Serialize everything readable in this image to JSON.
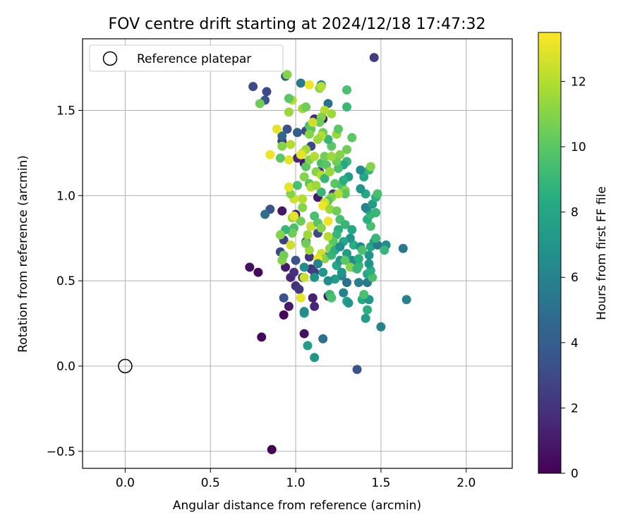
{
  "chart_data": {
    "type": "scatter",
    "title": "FOV centre drift starting at 2024/12/18 17:47:32",
    "xlabel": "Angular distance from reference (arcmin)",
    "ylabel": "Rotation from reference (arcmin)",
    "xlim": [
      -0.25,
      2.27
    ],
    "ylim": [
      -0.6,
      1.92
    ],
    "xticks": [
      0.0,
      0.5,
      1.0,
      1.5,
      2.0
    ],
    "xtick_labels": [
      "0.0",
      "0.5",
      "1.0",
      "1.5",
      "2.0"
    ],
    "yticks": [
      -0.5,
      0.0,
      0.5,
      1.0,
      1.5
    ],
    "ytick_labels": [
      "−0.5",
      "0.0",
      "0.5",
      "1.0",
      "1.5"
    ],
    "grid": true,
    "legend": {
      "placement": "top-left",
      "entries": [
        "Reference platepar"
      ]
    },
    "reference_point": {
      "name": "Reference platepar",
      "x": 0.0,
      "y": 0.0
    },
    "colorbar": {
      "label": "Hours from first FF file",
      "colormap": "viridis",
      "range": [
        0,
        13.5
      ],
      "ticks": [
        0,
        2,
        4,
        6,
        8,
        10,
        12
      ],
      "tick_labels": [
        "0",
        "2",
        "4",
        "6",
        "8",
        "10",
        "12"
      ]
    },
    "series": [
      {
        "points": [
          [
            0.86,
            -0.49,
            0.1
          ],
          [
            0.8,
            0.17,
            0.2
          ],
          [
            0.93,
            0.3,
            0.3
          ],
          [
            1.05,
            0.19,
            0.5
          ],
          [
            0.73,
            0.58,
            0.6
          ],
          [
            0.78,
            0.55,
            0.4
          ],
          [
            0.96,
            0.35,
            1.0
          ],
          [
            1.11,
            0.35,
            1.5
          ],
          [
            1.1,
            0.4,
            1.3
          ],
          [
            1.0,
            0.47,
            1.8
          ],
          [
            1.02,
            0.45,
            2.2
          ],
          [
            0.93,
            0.4,
            3.5
          ],
          [
            1.19,
            0.41,
            0.8
          ],
          [
            0.94,
            0.58,
            1.0
          ],
          [
            0.92,
            0.91,
            0.8
          ],
          [
            0.97,
            0.52,
            1.5
          ],
          [
            1.09,
            0.57,
            2.0
          ],
          [
            1.04,
            0.52,
            2.5
          ],
          [
            0.91,
            0.67,
            3.0
          ],
          [
            1.0,
            0.62,
            3.5
          ],
          [
            1.06,
            0.73,
            4.0
          ],
          [
            1.13,
            0.78,
            3.0
          ],
          [
            1.09,
            0.82,
            1.0
          ],
          [
            1.0,
            0.89,
            1.5
          ],
          [
            0.93,
            0.74,
            2.5
          ],
          [
            0.85,
            0.92,
            3.5
          ],
          [
            0.82,
            0.89,
            5.0
          ],
          [
            1.08,
            0.64,
            2.0
          ],
          [
            1.11,
            0.55,
            2.5
          ],
          [
            0.99,
            0.55,
            1.8
          ],
          [
            1.16,
            0.65,
            2.2
          ],
          [
            1.13,
            0.99,
            1.0
          ],
          [
            1.22,
            1.01,
            2.5
          ],
          [
            1.05,
            1.19,
            1.0
          ],
          [
            1.01,
            1.22,
            1.5
          ],
          [
            1.14,
            1.14,
            2.0
          ],
          [
            1.06,
            1.38,
            3.0
          ],
          [
            1.01,
            1.37,
            4.0
          ],
          [
            0.92,
            1.32,
            2.5
          ],
          [
            0.95,
            1.39,
            3.5
          ],
          [
            1.09,
            1.29,
            3.0
          ],
          [
            1.11,
            1.45,
            2.0
          ],
          [
            1.16,
            1.45,
            1.0
          ],
          [
            1.19,
            1.54,
            5.0
          ],
          [
            1.03,
            1.66,
            5.5
          ],
          [
            1.15,
            1.65,
            5.8
          ],
          [
            0.92,
            1.35,
            4.5
          ],
          [
            0.75,
            1.64,
            3.0
          ],
          [
            0.82,
            1.56,
            3.5
          ],
          [
            0.83,
            1.61,
            3.0
          ],
          [
            0.94,
            1.7,
            4.0
          ],
          [
            1.46,
            1.81,
            2.5
          ],
          [
            1.36,
            -0.02,
            3.5
          ],
          [
            1.5,
            0.23,
            6.0
          ],
          [
            1.16,
            0.16,
            5.0
          ],
          [
            1.07,
            0.12,
            7.5
          ],
          [
            1.11,
            0.05,
            7.0
          ],
          [
            1.05,
            0.31,
            7.5
          ],
          [
            1.05,
            0.32,
            6.5
          ],
          [
            1.2,
            0.42,
            9.0
          ],
          [
            1.21,
            0.4,
            9.5
          ],
          [
            1.3,
            0.38,
            8.0
          ],
          [
            1.31,
            0.37,
            7.0
          ],
          [
            1.28,
            0.43,
            6.0
          ],
          [
            1.39,
            0.39,
            8.0
          ],
          [
            1.37,
            0.49,
            5.8
          ],
          [
            1.42,
            0.49,
            5.5
          ],
          [
            1.43,
            0.39,
            7.0
          ],
          [
            1.42,
            0.33,
            8.5
          ],
          [
            1.41,
            0.28,
            7.5
          ],
          [
            1.3,
            0.49,
            5.0
          ],
          [
            1.27,
            0.53,
            6.0
          ],
          [
            1.27,
            0.55,
            7.0
          ],
          [
            1.34,
            0.58,
            8.5
          ],
          [
            1.37,
            0.59,
            9.0
          ],
          [
            1.42,
            0.54,
            8.0
          ],
          [
            1.45,
            0.52,
            9.5
          ],
          [
            1.44,
            0.56,
            8.5
          ],
          [
            1.33,
            0.62,
            6.5
          ],
          [
            1.3,
            0.66,
            7.5
          ],
          [
            1.34,
            0.71,
            8.5
          ],
          [
            1.38,
            0.7,
            6.5
          ],
          [
            1.43,
            0.65,
            7.0
          ],
          [
            1.44,
            0.7,
            8.0
          ],
          [
            1.46,
            0.73,
            7.5
          ],
          [
            1.48,
            0.71,
            5.5
          ],
          [
            1.53,
            0.71,
            6.5
          ],
          [
            1.52,
            0.68,
            9.0
          ],
          [
            1.47,
            0.75,
            9.0
          ],
          [
            1.44,
            0.82,
            9.5
          ],
          [
            1.42,
            0.86,
            8.5
          ],
          [
            1.44,
            0.89,
            9.0
          ],
          [
            1.47,
            0.9,
            9.0
          ],
          [
            1.42,
            0.92,
            8.0
          ],
          [
            1.41,
            0.93,
            6.0
          ],
          [
            1.45,
            0.95,
            7.5
          ],
          [
            1.47,
            0.99,
            8.5
          ],
          [
            1.48,
            1.01,
            9.5
          ],
          [
            1.41,
            1.01,
            8.0
          ],
          [
            1.38,
            1.04,
            7.0
          ],
          [
            1.4,
            1.11,
            8.0
          ],
          [
            1.43,
            1.15,
            9.0
          ],
          [
            1.38,
            1.15,
            6.5
          ],
          [
            1.44,
            1.17,
            11.0
          ],
          [
            1.63,
            0.69,
            5.5
          ],
          [
            1.65,
            0.39,
            6.0
          ],
          [
            1.3,
            1.62,
            9.5
          ],
          [
            1.3,
            1.52,
            9.0
          ],
          [
            1.33,
            1.34,
            10.0
          ],
          [
            1.3,
            1.27,
            10.5
          ],
          [
            1.3,
            1.2,
            9.0
          ],
          [
            1.28,
            1.18,
            8.0
          ],
          [
            1.31,
            1.11,
            7.5
          ],
          [
            1.25,
            1.16,
            9.5
          ],
          [
            1.24,
            1.2,
            10.5
          ],
          [
            1.26,
            1.24,
            11.0
          ],
          [
            1.21,
            1.29,
            10.0
          ],
          [
            1.24,
            1.36,
            11.5
          ],
          [
            1.25,
            1.39,
            10.0
          ],
          [
            1.19,
            1.33,
            9.0
          ],
          [
            1.16,
            1.37,
            10.5
          ],
          [
            1.21,
            1.48,
            11.5
          ],
          [
            1.17,
            1.5,
            12.0
          ],
          [
            1.15,
            1.46,
            11.0
          ],
          [
            1.14,
            1.43,
            10.5
          ],
          [
            1.15,
            1.35,
            12.0
          ],
          [
            1.13,
            1.33,
            11.5
          ],
          [
            1.08,
            1.41,
            9.5
          ],
          [
            1.09,
            1.39,
            10.0
          ],
          [
            1.08,
            1.36,
            11.0
          ],
          [
            1.1,
            1.43,
            12.5
          ],
          [
            1.06,
            1.27,
            11.5
          ],
          [
            1.04,
            1.25,
            12.0
          ],
          [
            1.03,
            1.24,
            13.0
          ],
          [
            1.06,
            1.17,
            10.0
          ],
          [
            1.08,
            1.21,
            11.0
          ],
          [
            1.11,
            1.23,
            12.0
          ],
          [
            1.15,
            1.19,
            9.5
          ],
          [
            1.17,
            1.23,
            10.5
          ],
          [
            1.21,
            1.23,
            11.5
          ],
          [
            1.18,
            1.18,
            10.0
          ],
          [
            1.12,
            1.14,
            11.0
          ],
          [
            1.15,
            1.12,
            12.0
          ],
          [
            1.17,
            1.1,
            9.0
          ],
          [
            1.2,
            1.14,
            11.5
          ],
          [
            1.23,
            1.07,
            10.0
          ],
          [
            1.27,
            1.06,
            9.5
          ],
          [
            1.28,
            1.09,
            8.5
          ],
          [
            1.29,
            1.03,
            11.0
          ],
          [
            1.29,
            1.01,
            10.0
          ],
          [
            1.25,
            1.01,
            12.0
          ],
          [
            1.21,
            0.99,
            11.0
          ],
          [
            1.19,
            0.97,
            10.0
          ],
          [
            1.15,
            1.02,
            9.0
          ],
          [
            1.17,
            0.96,
            12.5
          ],
          [
            1.16,
            0.94,
            13.2
          ],
          [
            1.2,
            0.92,
            11.5
          ],
          [
            1.24,
            0.91,
            10.5
          ],
          [
            1.26,
            0.86,
            9.5
          ],
          [
            1.25,
            0.8,
            8.5
          ],
          [
            1.29,
            0.83,
            9.0
          ],
          [
            1.33,
            0.8,
            8.0
          ],
          [
            1.32,
            0.75,
            7.0
          ],
          [
            1.28,
            0.73,
            8.0
          ],
          [
            1.24,
            0.77,
            9.0
          ],
          [
            1.22,
            0.73,
            10.0
          ],
          [
            1.19,
            0.76,
            12.0
          ],
          [
            1.2,
            0.69,
            11.0
          ],
          [
            1.15,
            0.66,
            12.5
          ],
          [
            1.17,
            0.63,
            11.0
          ],
          [
            1.13,
            0.63,
            13.0
          ],
          [
            1.08,
            0.68,
            11.5
          ],
          [
            1.06,
            0.72,
            10.5
          ],
          [
            1.07,
            0.77,
            11.5
          ],
          [
            1.09,
            0.82,
            12.5
          ],
          [
            1.13,
            0.84,
            10.0
          ],
          [
            1.15,
            0.81,
            11.0
          ],
          [
            1.19,
            0.85,
            13.2
          ],
          [
            1.11,
            0.88,
            9.5
          ],
          [
            1.03,
            0.85,
            10.5
          ],
          [
            0.98,
            0.87,
            11.5
          ],
          [
            0.99,
            0.81,
            9.5
          ],
          [
            0.98,
            0.78,
            10.5
          ],
          [
            0.94,
            0.8,
            9.0
          ],
          [
            0.91,
            0.77,
            11.0
          ],
          [
            0.97,
            0.71,
            12.5
          ],
          [
            0.99,
            0.88,
            13.0
          ],
          [
            1.04,
            0.93,
            11.0
          ],
          [
            1.04,
            0.98,
            12.0
          ],
          [
            0.99,
            0.98,
            12.5
          ],
          [
            0.97,
            1.01,
            11.0
          ],
          [
            0.96,
            1.05,
            13.0
          ],
          [
            1.01,
            1.06,
            9.5
          ],
          [
            1.05,
            1.11,
            11.0
          ],
          [
            1.08,
            1.07,
            10.0
          ],
          [
            1.09,
            1.05,
            12.0
          ],
          [
            1.12,
            1.06,
            11.5
          ],
          [
            0.96,
            1.21,
            13.0
          ],
          [
            0.91,
            1.22,
            10.0
          ],
          [
            0.92,
            1.29,
            11.0
          ],
          [
            0.97,
            1.3,
            12.0
          ],
          [
            0.89,
            1.39,
            13.0
          ],
          [
            0.85,
            1.24,
            13.2
          ],
          [
            0.96,
            1.49,
            11.5
          ],
          [
            0.98,
            1.56,
            12.0
          ],
          [
            0.96,
            1.57,
            10.0
          ],
          [
            1.04,
            1.51,
            11.5
          ],
          [
            1.06,
            1.52,
            10.5
          ],
          [
            1.14,
            1.63,
            11.0
          ],
          [
            1.15,
            1.64,
            12.0
          ],
          [
            1.08,
            1.65,
            13.2
          ],
          [
            0.95,
            1.71,
            11.0
          ],
          [
            0.79,
            1.54,
            10.5
          ],
          [
            1.03,
            0.4,
            13.0
          ],
          [
            1.05,
            0.52,
            12.5
          ],
          [
            0.92,
            0.62,
            11.0
          ],
          [
            0.93,
            0.65,
            10.5
          ],
          [
            1.11,
            0.52,
            7.0
          ],
          [
            1.05,
            0.58,
            6.5
          ],
          [
            1.13,
            0.6,
            6.0
          ],
          [
            1.16,
            0.55,
            7.0
          ],
          [
            1.23,
            0.51,
            7.5
          ],
          [
            1.19,
            0.5,
            6.5
          ],
          [
            1.24,
            0.59,
            8.0
          ],
          [
            1.26,
            0.62,
            7.0
          ],
          [
            1.21,
            0.65,
            9.0
          ],
          [
            1.23,
            0.68,
            8.5
          ],
          [
            1.26,
            0.7,
            6.5
          ],
          [
            1.37,
            0.63,
            8.5
          ],
          [
            1.39,
            0.68,
            9.5
          ],
          [
            1.29,
            0.62,
            10.0
          ],
          [
            1.32,
            0.58,
            11.0
          ],
          [
            1.36,
            0.57,
            9.0
          ],
          [
            1.43,
            0.6,
            7.0
          ],
          [
            1.4,
            0.42,
            9.5
          ]
        ]
      }
    ]
  }
}
